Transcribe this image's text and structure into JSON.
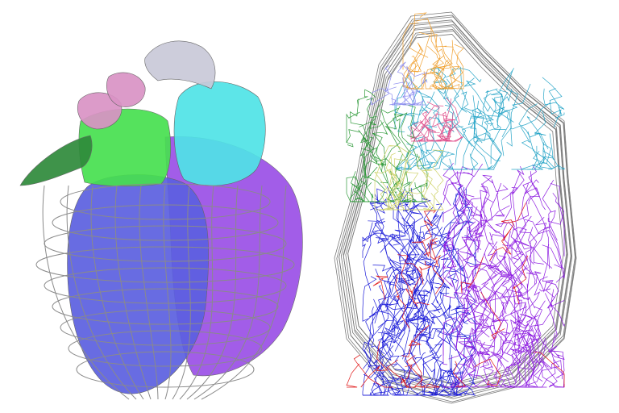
{
  "image": {
    "background": "#ffffff",
    "panels": [
      {
        "name": "surface-model",
        "colors": {
          "wire": "#8a8a8a",
          "blue": "#5b5fe0",
          "purple": "#9a4fe6",
          "green": "#47e04f",
          "dark_green": "#2f8a3b",
          "cyan": "#4fe3e6",
          "pink": "#d993c4",
          "gray_vessel": "#c9c9d8"
        }
      },
      {
        "name": "fiber-model",
        "colors": {
          "outline": "#7a7a7a",
          "blue": "#1a1ad8",
          "purple": "#8c1ae0",
          "red": "#e01414",
          "orange": "#f0a030",
          "teal": "#2aa6c8",
          "green": "#2f9a3a",
          "yellow": "#cfd36a",
          "periwinkle": "#8c8cf0",
          "magenta": "#e0508c"
        }
      }
    ]
  }
}
